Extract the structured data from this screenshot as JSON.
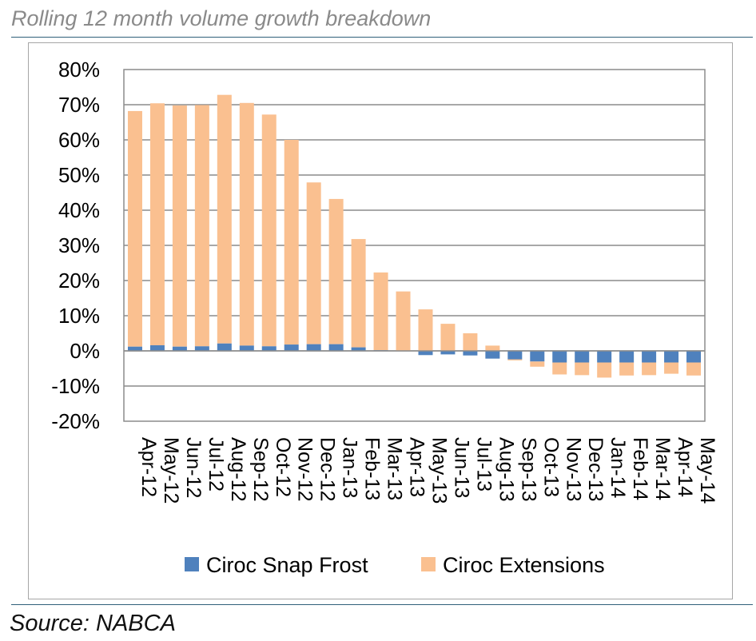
{
  "header": {
    "title": "Rolling 12 month volume growth breakdown"
  },
  "footer": {
    "source": "Source: NABCA"
  },
  "chart_data": {
    "type": "bar",
    "stacked": true,
    "title": "",
    "xlabel": "",
    "ylabel": "",
    "ylim": [
      -0.2,
      0.8
    ],
    "yticks": [
      -0.2,
      -0.1,
      0,
      0.1,
      0.2,
      0.3,
      0.4,
      0.5,
      0.6,
      0.7,
      0.8
    ],
    "ytick_labels": [
      "-20%",
      "-10%",
      "0%",
      "10%",
      "20%",
      "30%",
      "40%",
      "50%",
      "60%",
      "70%",
      "80%"
    ],
    "grid": true,
    "legend_position": "bottom",
    "categories": [
      "Apr-12",
      "May-12",
      "Jun-12",
      "Jul-12",
      "Aug-12",
      "Sep-12",
      "Oct-12",
      "Nov-12",
      "Dec-12",
      "Jan-13",
      "Feb-13",
      "Mar-13",
      "Apr-13",
      "May-13",
      "Jun-13",
      "Jul-13",
      "Aug-13",
      "Sep-13",
      "Oct-13",
      "Nov-13",
      "Dec-13",
      "Jan-14",
      "Feb-14",
      "Mar-14",
      "Apr-14",
      "May-14"
    ],
    "series": [
      {
        "name": "Ciroc Snap Frost",
        "color": "#4f81bd",
        "values": [
          0.012,
          0.016,
          0.012,
          0.013,
          0.021,
          0.015,
          0.013,
          0.018,
          0.019,
          0.019,
          0.01,
          0.002,
          0,
          -0.012,
          -0.01,
          -0.013,
          -0.022,
          -0.024,
          -0.03,
          -0.033,
          -0.033,
          -0.033,
          -0.033,
          -0.033,
          -0.033,
          -0.033
        ]
      },
      {
        "name": "Ciroc Extensions",
        "color": "#fac090",
        "values": [
          0.67,
          0.688,
          0.686,
          0.686,
          0.707,
          0.69,
          0.659,
          0.582,
          0.46,
          0.413,
          0.308,
          0.221,
          0.169,
          0.118,
          0.077,
          0.05,
          0.015,
          -0.003,
          -0.015,
          -0.034,
          -0.036,
          -0.043,
          -0.037,
          -0.036,
          -0.032,
          -0.037
        ]
      }
    ]
  }
}
